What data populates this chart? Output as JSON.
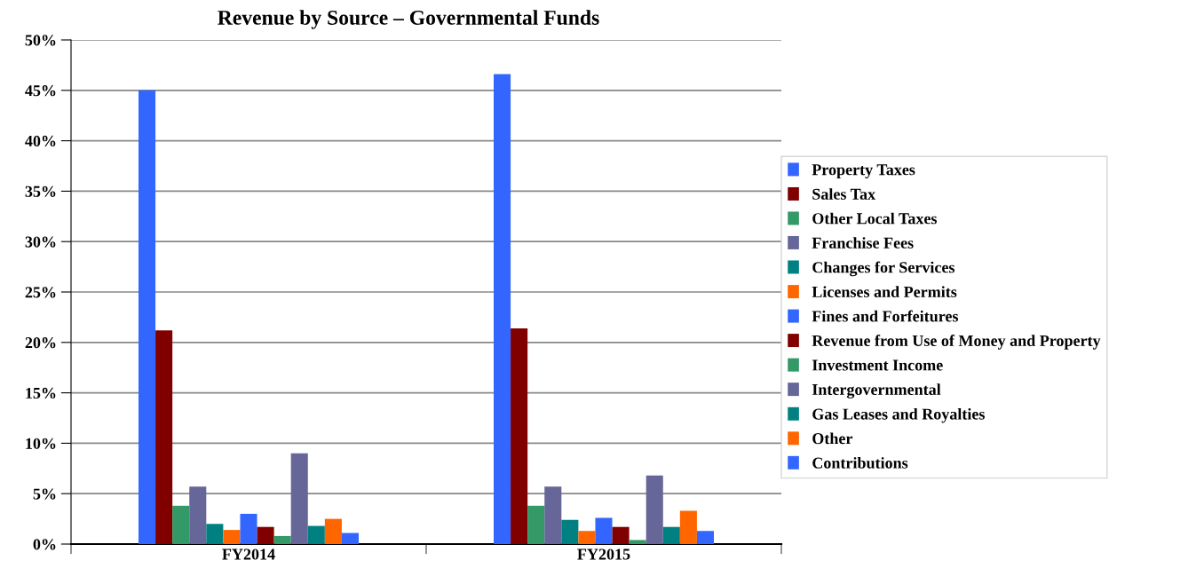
{
  "chart_data": {
    "type": "bar",
    "title": "Revenue by Source – Governmental Funds",
    "categories": [
      "FY2014",
      "FY2015"
    ],
    "series": [
      {
        "name": "Property Taxes",
        "color": "#3366ff",
        "values": [
          45.0,
          46.6
        ]
      },
      {
        "name": "Sales Tax",
        "color": "#800000",
        "values": [
          21.2,
          21.4
        ]
      },
      {
        "name": "Other Local Taxes",
        "color": "#339966",
        "values": [
          3.8,
          3.8
        ]
      },
      {
        "name": "Franchise Fees",
        "color": "#666699",
        "values": [
          5.7,
          5.7
        ]
      },
      {
        "name": "Changes for Services",
        "color": "#008080",
        "values": [
          2.0,
          2.4
        ]
      },
      {
        "name": "Licenses and Permits",
        "color": "#ff6600",
        "values": [
          1.4,
          1.3
        ]
      },
      {
        "name": "Fines and Forfeitures",
        "color": "#3366ff",
        "values": [
          3.0,
          2.6
        ]
      },
      {
        "name": "Revenue from Use of Money and Property",
        "color": "#800000",
        "values": [
          1.7,
          1.7
        ]
      },
      {
        "name": "Investment Income",
        "color": "#339966",
        "values": [
          0.8,
          0.4
        ]
      },
      {
        "name": "Intergovernmental",
        "color": "#666699",
        "values": [
          9.0,
          6.8
        ]
      },
      {
        "name": "Gas Leases and Royalties",
        "color": "#008080",
        "values": [
          1.8,
          1.7
        ]
      },
      {
        "name": "Other",
        "color": "#ff6600",
        "values": [
          2.5,
          3.3
        ]
      },
      {
        "name": "Contributions",
        "color": "#3366ff",
        "values": [
          1.1,
          1.3
        ]
      }
    ],
    "ylim": [
      0,
      50
    ],
    "yticks": [
      {
        "value": 0,
        "label": "0%"
      },
      {
        "value": 5,
        "label": "5%"
      },
      {
        "value": 10,
        "label": "10%"
      },
      {
        "value": 15,
        "label": "15%"
      },
      {
        "value": 20,
        "label": "20%"
      },
      {
        "value": 25,
        "label": "25%"
      },
      {
        "value": 30,
        "label": "30%"
      },
      {
        "value": 35,
        "label": "35%"
      },
      {
        "value": 40,
        "label": "40%"
      },
      {
        "value": 45,
        "label": "45%"
      },
      {
        "value": 50,
        "label": "50%"
      }
    ],
    "grid": "y",
    "legend": "right"
  }
}
